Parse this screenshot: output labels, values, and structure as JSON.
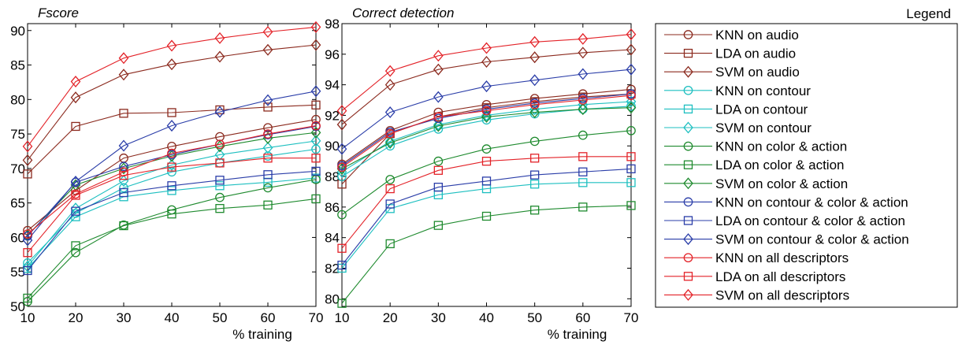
{
  "legend_title": "Legend",
  "series_styles": [
    {
      "color": "#8B2A1E",
      "marker": "circle"
    },
    {
      "color": "#8B2A1E",
      "marker": "square"
    },
    {
      "color": "#8B2A1E",
      "marker": "diamond"
    },
    {
      "color": "#1DBFC0",
      "marker": "circle"
    },
    {
      "color": "#1DBFC0",
      "marker": "square"
    },
    {
      "color": "#1DBFC0",
      "marker": "diamond"
    },
    {
      "color": "#1E8A2E",
      "marker": "circle"
    },
    {
      "color": "#1E8A2E",
      "marker": "square"
    },
    {
      "color": "#1E8A2E",
      "marker": "diamond"
    },
    {
      "color": "#2A3DA8",
      "marker": "circle"
    },
    {
      "color": "#2A3DA8",
      "marker": "square"
    },
    {
      "color": "#2A3DA8",
      "marker": "diamond"
    },
    {
      "color": "#E32228",
      "marker": "circle"
    },
    {
      "color": "#E32228",
      "marker": "square"
    },
    {
      "color": "#E32228",
      "marker": "diamond"
    }
  ],
  "chart_data": [
    {
      "type": "line",
      "title": "Fscore",
      "xlabel": "% training",
      "ylabel": "",
      "x": [
        10,
        20,
        30,
        40,
        50,
        60,
        70
      ],
      "xlim": [
        10,
        70
      ],
      "ylim": [
        50,
        91
      ],
      "yticks": [
        50,
        55,
        60,
        65,
        70,
        75,
        80,
        85,
        90
      ],
      "grid": false,
      "series": [
        {
          "name": "KNN on audio",
          "values": [
            61.0,
            66.8,
            71.5,
            73.2,
            74.6,
            75.9,
            77.1
          ]
        },
        {
          "name": "LDA on audio",
          "values": [
            69.2,
            76.1,
            78.0,
            78.1,
            78.5,
            78.9,
            79.2
          ]
        },
        {
          "name": "SVM on audio",
          "values": [
            71.2,
            80.3,
            83.6,
            85.1,
            86.2,
            87.2,
            87.9
          ]
        },
        {
          "name": "KNN on contour",
          "values": [
            56.3,
            63.5,
            67.2,
            69.5,
            70.8,
            71.8,
            72.8
          ]
        },
        {
          "name": "LDA on contour",
          "values": [
            55.5,
            63.0,
            65.9,
            66.8,
            67.5,
            68.0,
            68.6
          ]
        },
        {
          "name": "SVM on contour",
          "values": [
            55.8,
            64.2,
            68.2,
            70.5,
            72.0,
            73.0,
            74.0
          ]
        },
        {
          "name": "KNN on color & action",
          "values": [
            50.7,
            57.8,
            61.8,
            64.0,
            65.8,
            67.2,
            68.4
          ]
        },
        {
          "name": "LDA on color & action",
          "values": [
            51.2,
            58.8,
            61.7,
            63.4,
            64.2,
            64.7,
            65.6
          ]
        },
        {
          "name": "SVM on color & action",
          "values": [
            60.3,
            67.6,
            70.0,
            71.8,
            73.2,
            74.4,
            75.2
          ]
        },
        {
          "name": "KNN on contour & color & action",
          "values": [
            60.2,
            68.0,
            70.3,
            72.0,
            73.5,
            74.9,
            76.1
          ]
        },
        {
          "name": "LDA on contour & color & action",
          "values": [
            55.2,
            63.8,
            66.5,
            67.5,
            68.3,
            69.1,
            69.6
          ]
        },
        {
          "name": "SVM on contour & color & action",
          "values": [
            59.6,
            68.1,
            73.3,
            76.2,
            78.2,
            79.9,
            81.2
          ]
        },
        {
          "name": "KNN on all descriptors",
          "values": [
            60.5,
            66.3,
            69.5,
            72.2,
            73.5,
            75.0,
            76.2
          ]
        },
        {
          "name": "LDA on all descriptors",
          "values": [
            57.8,
            66.1,
            69.0,
            70.2,
            70.8,
            71.5,
            71.5
          ]
        },
        {
          "name": "SVM on all descriptors",
          "values": [
            73.2,
            82.6,
            86.0,
            87.8,
            88.9,
            89.8,
            90.5
          ]
        }
      ]
    },
    {
      "type": "line",
      "title": "Correct detection",
      "xlabel": "% training",
      "ylabel": "",
      "x": [
        10,
        20,
        30,
        40,
        50,
        60,
        70
      ],
      "xlim": [
        10,
        70
      ],
      "ylim": [
        79.5,
        98
      ],
      "yticks": [
        80,
        82,
        84,
        86,
        88,
        90,
        92,
        94,
        96,
        98
      ],
      "grid": false,
      "series": [
        {
          "name": "KNN on audio",
          "values": [
            88.8,
            91.0,
            92.2,
            92.7,
            93.1,
            93.4,
            93.7
          ]
        },
        {
          "name": "LDA on audio",
          "values": [
            87.5,
            90.8,
            91.9,
            92.5,
            92.9,
            93.2,
            93.4
          ]
        },
        {
          "name": "SVM on audio",
          "values": [
            91.4,
            94.0,
            95.0,
            95.5,
            95.8,
            96.1,
            96.3
          ]
        },
        {
          "name": "KNN on contour",
          "values": [
            88.0,
            90.0,
            91.1,
            91.7,
            92.1,
            92.4,
            92.6
          ]
        },
        {
          "name": "LDA on contour",
          "values": [
            82.0,
            85.9,
            86.8,
            87.2,
            87.5,
            87.6,
            87.6
          ]
        },
        {
          "name": "SVM on contour",
          "values": [
            88.3,
            90.3,
            91.4,
            92.0,
            92.4,
            92.7,
            92.9
          ]
        },
        {
          "name": "KNN on color & action",
          "values": [
            85.5,
            87.8,
            89.0,
            89.8,
            90.3,
            90.7,
            91.0
          ]
        },
        {
          "name": "LDA on color & action",
          "values": [
            79.7,
            83.6,
            84.8,
            85.4,
            85.8,
            86.0,
            86.1
          ]
        },
        {
          "name": "SVM on color & action",
          "values": [
            88.5,
            90.2,
            91.3,
            91.9,
            92.2,
            92.4,
            92.5
          ]
        },
        {
          "name": "KNN on contour & color & action",
          "values": [
            88.7,
            90.9,
            91.8,
            92.4,
            92.8,
            93.1,
            93.4
          ]
        },
        {
          "name": "LDA on contour & color & action",
          "values": [
            82.2,
            86.2,
            87.3,
            87.7,
            88.1,
            88.3,
            88.5
          ]
        },
        {
          "name": "SVM on contour & color & action",
          "values": [
            89.8,
            92.2,
            93.2,
            93.9,
            94.3,
            94.7,
            95.0
          ]
        },
        {
          "name": "KNN on all descriptors",
          "values": [
            88.6,
            90.8,
            91.9,
            92.3,
            92.7,
            93.0,
            93.3
          ]
        },
        {
          "name": "LDA on all descriptors",
          "values": [
            83.3,
            87.2,
            88.4,
            89.0,
            89.2,
            89.3,
            89.3
          ]
        },
        {
          "name": "SVM on all descriptors",
          "values": [
            92.3,
            94.9,
            95.9,
            96.4,
            96.8,
            97.0,
            97.3
          ]
        }
      ]
    }
  ]
}
